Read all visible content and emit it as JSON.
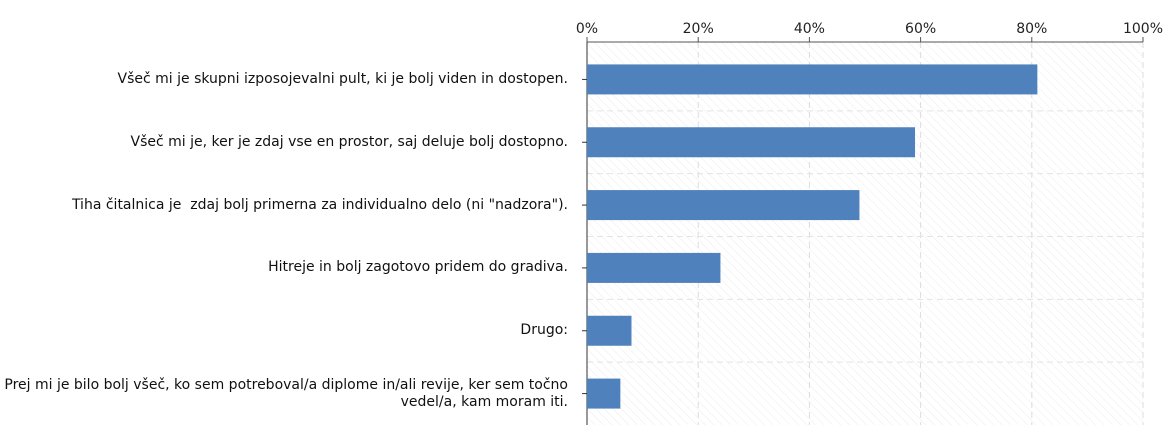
{
  "chart_data": {
    "type": "barh",
    "categories": [
      "Všeč mi je skupni izposojevalni pult, ki je bolj viden in dostopen.",
      "Všeč mi je, ker je zdaj vse en prostor, saj deluje bolj dostopno.",
      "Tiha čitalnica je  zdaj bolj primerna za individualno delo (ni \"nadzora\").",
      "Hitreje in bolj zagotovo pridem do gradiva.",
      "Drugo:",
      "Prej mi je bilo bolj všeč, ko sem potreboval/a diplome in/ali revije, ker sem točno vedel/a, kam moram iti."
    ],
    "values": [
      81,
      59,
      49,
      24,
      8,
      6
    ],
    "color": "#4f81bd",
    "xlim": [
      0,
      100
    ],
    "xticks": [
      {
        "value": 0,
        "label": "0%"
      },
      {
        "value": 20,
        "label": "20%"
      },
      {
        "value": 40,
        "label": "40%"
      },
      {
        "value": 60,
        "label": "60%"
      },
      {
        "value": 80,
        "label": "80%"
      },
      {
        "value": 100,
        "label": "100%"
      }
    ],
    "grid": true
  }
}
